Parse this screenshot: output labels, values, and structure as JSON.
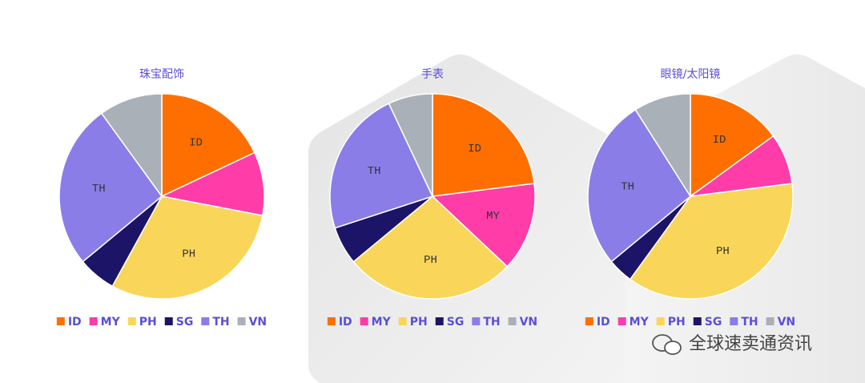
{
  "chart_data": [
    {
      "type": "pie",
      "title": "珠宝配饰",
      "categories": [
        "ID",
        "MY",
        "PH",
        "SG",
        "TH",
        "VN"
      ],
      "values": [
        18,
        10,
        30,
        6,
        26,
        10
      ],
      "colors": [
        "#ff6f00",
        "#ff3ca8",
        "#f9d65a",
        "#1c1466",
        "#8b7de8",
        "#a9b0b8"
      ],
      "legend": "bottom"
    },
    {
      "type": "pie",
      "title": "手表",
      "categories": [
        "ID",
        "MY",
        "PH",
        "SG",
        "TH",
        "VN"
      ],
      "values": [
        23,
        14,
        27,
        6,
        23,
        7
      ],
      "colors": [
        "#ff6f00",
        "#ff3ca8",
        "#f9d65a",
        "#1c1466",
        "#8b7de8",
        "#a9b0b8"
      ],
      "legend": "bottom"
    },
    {
      "type": "pie",
      "title": "眼镜/太阳镜",
      "categories": [
        "ID",
        "MY",
        "PH",
        "SG",
        "TH",
        "VN"
      ],
      "values": [
        15,
        8,
        37,
        4,
        27,
        9
      ],
      "colors": [
        "#ff6f00",
        "#ff3ca8",
        "#f9d65a",
        "#1c1466",
        "#8b7de8",
        "#a9b0b8"
      ],
      "legend": "bottom"
    }
  ],
  "watermark": "全球速卖通资讯"
}
